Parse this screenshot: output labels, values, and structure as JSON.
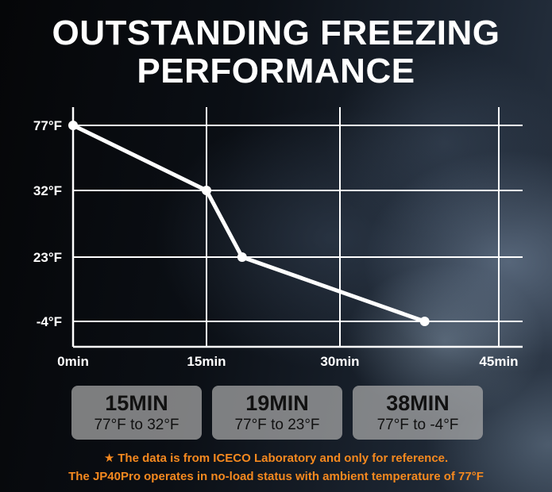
{
  "title": {
    "line1": "OUTSTANDING FREEZING",
    "line2": "PERFORMANCE"
  },
  "chart_data": {
    "type": "line",
    "title": "OUTSTANDING FREEZING PERFORMANCE",
    "xlabel": "",
    "ylabel": "",
    "x_ticks": [
      "0min",
      "15min",
      "30min",
      "45min"
    ],
    "y_ticks": [
      "77°F",
      "32°F",
      "23°F",
      "-4°F"
    ],
    "y_tick_values": [
      77,
      32,
      23,
      -4
    ],
    "xlim": [
      0,
      45
    ],
    "grid": true,
    "series": [
      {
        "points": [
          {
            "x": 0,
            "y": 77
          },
          {
            "x": 15,
            "y": 32
          },
          {
            "x": 19,
            "y": 23
          },
          {
            "x": 38,
            "y": -4
          }
        ]
      }
    ]
  },
  "colors": {
    "accent": "#f5891f",
    "line": "#ffffff",
    "card": "#aaaaaa"
  },
  "cards": [
    {
      "time": "15MIN",
      "range": "77°F to 32°F"
    },
    {
      "time": "19MIN",
      "range": "77°F to 23°F"
    },
    {
      "time": "38MIN",
      "range": "77°F to -4°F"
    }
  ],
  "notes": {
    "icon": "star-icon",
    "star": "★",
    "line1": "The data is from ICECO Laboratory and only for reference.",
    "line2": "The JP40Pro operates in no-load status with ambient temperature of 77°F"
  }
}
